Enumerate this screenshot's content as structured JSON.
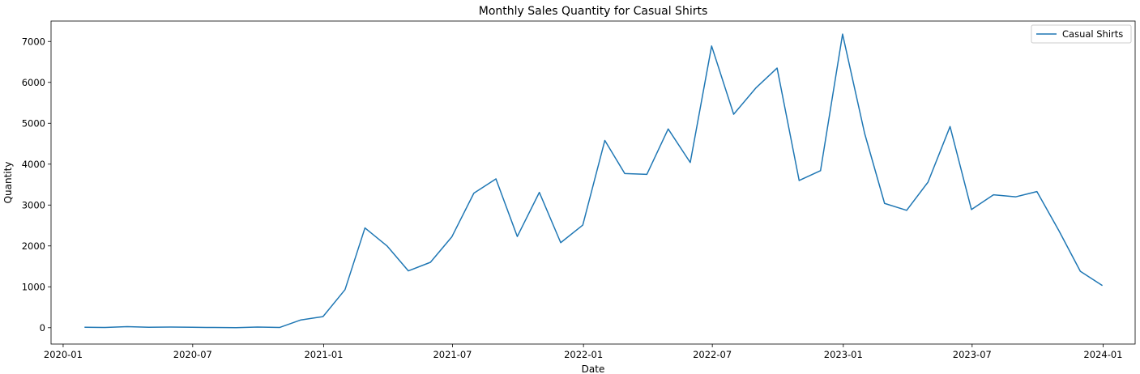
{
  "chart_data": {
    "type": "line",
    "title": "Monthly Sales Quantity for Casual Shirts",
    "xlabel": "Date",
    "ylabel": "Quantity",
    "xlim": [
      "2019-12-15",
      "2024-02-15"
    ],
    "ylim": [
      -400,
      7500
    ],
    "grid": false,
    "legend_position": "top-right",
    "x_ticks": [
      {
        "date": "2020-01-01",
        "label": "2020-01"
      },
      {
        "date": "2020-07-01",
        "label": "2020-07"
      },
      {
        "date": "2021-01-01",
        "label": "2021-01"
      },
      {
        "date": "2021-07-01",
        "label": "2021-07"
      },
      {
        "date": "2022-01-01",
        "label": "2022-01"
      },
      {
        "date": "2022-07-01",
        "label": "2022-07"
      },
      {
        "date": "2023-01-01",
        "label": "2023-01"
      },
      {
        "date": "2023-07-01",
        "label": "2023-07"
      },
      {
        "date": "2024-01-01",
        "label": "2024-01"
      }
    ],
    "y_ticks": [
      0,
      1000,
      2000,
      3000,
      4000,
      5000,
      6000,
      7000
    ],
    "series": [
      {
        "name": "Casual Shirts",
        "color": "#1f77b4",
        "x": [
          "2020-01-31",
          "2020-02-29",
          "2020-03-31",
          "2020-04-30",
          "2020-05-31",
          "2020-06-30",
          "2020-07-31",
          "2020-08-31",
          "2020-09-30",
          "2020-10-31",
          "2020-11-30",
          "2020-12-31",
          "2021-01-31",
          "2021-02-28",
          "2021-03-31",
          "2021-04-30",
          "2021-05-31",
          "2021-06-30",
          "2021-07-31",
          "2021-08-31",
          "2021-09-30",
          "2021-10-31",
          "2021-11-30",
          "2021-12-31",
          "2022-01-31",
          "2022-02-28",
          "2022-03-31",
          "2022-04-30",
          "2022-05-31",
          "2022-06-30",
          "2022-07-31",
          "2022-08-31",
          "2022-09-30",
          "2022-10-31",
          "2022-11-30",
          "2022-12-31",
          "2023-01-31",
          "2023-02-28",
          "2023-03-31",
          "2023-04-30",
          "2023-05-31",
          "2023-06-30",
          "2023-07-31",
          "2023-08-31",
          "2023-09-30",
          "2023-10-31",
          "2023-11-30",
          "2023-12-31"
        ],
        "values": [
          10,
          5,
          25,
          10,
          15,
          10,
          5,
          0,
          15,
          5,
          190,
          270,
          930,
          2440,
          2000,
          1390,
          1600,
          2220,
          3290,
          3640,
          2230,
          3310,
          2080,
          2510,
          4580,
          3770,
          3750,
          4860,
          4040,
          6890,
          5220,
          5860,
          6350,
          3600,
          3840,
          7180,
          4750,
          3040,
          2870,
          3560,
          4920,
          2890,
          3250,
          3200,
          3330,
          2370,
          1380,
          1030
        ]
      }
    ]
  }
}
